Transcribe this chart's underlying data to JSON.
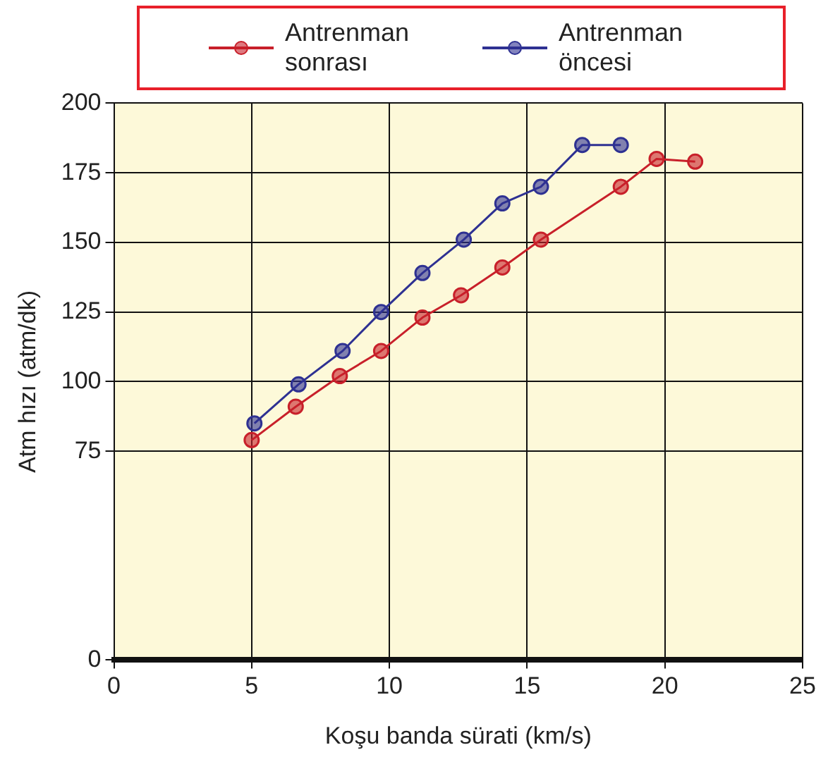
{
  "chart_data": {
    "type": "line",
    "xlabel": "Koşu banda sürati (km/s)",
    "ylabel": "Atm hızı (atm/dk)",
    "xlim": [
      0,
      25
    ],
    "xticks": [
      0,
      5,
      10,
      15,
      20,
      25
    ],
    "ylim": [
      0,
      200
    ],
    "yticks": [
      0,
      75,
      100,
      125,
      150,
      175,
      200
    ],
    "grid": true,
    "legend": "top",
    "marker": "circle",
    "line_style": "solid",
    "series": [
      {
        "name": "Antrenman sonrası",
        "color": "#c8202a",
        "x": [
          5.0,
          6.6,
          8.2,
          9.7,
          11.2,
          12.6,
          14.1,
          15.5,
          18.4,
          19.7,
          21.1
        ],
        "values": [
          79,
          91,
          102,
          111,
          123,
          131,
          141,
          151,
          170,
          180,
          179
        ]
      },
      {
        "name": "Antrenman öncesi",
        "color": "#2e3192",
        "x": [
          5.1,
          6.7,
          8.3,
          9.7,
          11.2,
          12.7,
          14.1,
          15.5,
          17.0,
          18.4
        ],
        "values": [
          85,
          99,
          111,
          125,
          139,
          151,
          164,
          170,
          185,
          185
        ]
      }
    ]
  }
}
